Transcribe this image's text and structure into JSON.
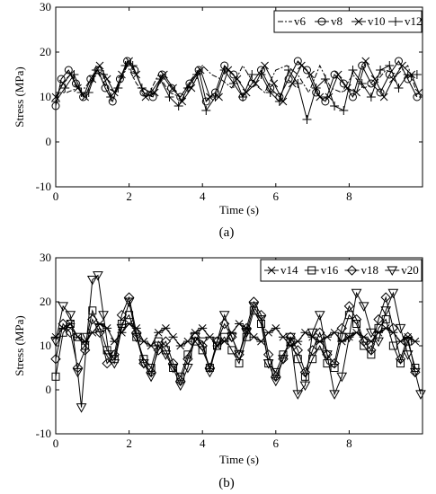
{
  "figure": {
    "panel_labels": [
      "(a)",
      "(b)"
    ]
  },
  "chart_data": [
    {
      "type": "line",
      "panel": "(a)",
      "xlabel": "Time (s)",
      "ylabel": "Stress (MPa)",
      "xlim": [
        0,
        10
      ],
      "ylim": [
        -10,
        30
      ],
      "xticks": [
        0,
        2,
        4,
        6,
        8
      ],
      "yticks": [
        -10,
        0,
        10,
        20,
        30
      ],
      "grid": false,
      "legend_position": "top-right",
      "series": [
        {
          "name": "v6",
          "marker": "none",
          "dash": "dashdot",
          "x": [
            0,
            0.3,
            0.6,
            0.8,
            1.1,
            1.4,
            1.65,
            1.95,
            2.2,
            2.5,
            2.8,
            3.1,
            3.4,
            3.7,
            4,
            4.25,
            4.5,
            4.8,
            5.1,
            5.4,
            5.7,
            6,
            6.3,
            6.6,
            6.9,
            7.2,
            7.5,
            7.8,
            8.1,
            8.4,
            8.7,
            9,
            9.3,
            9.6,
            9.8
          ],
          "y": [
            11,
            11,
            12,
            12,
            16,
            12,
            11,
            17,
            13,
            10,
            15,
            11,
            10,
            14,
            17,
            15,
            14,
            12,
            17,
            13,
            11,
            16,
            17,
            15,
            11,
            17,
            12,
            11,
            15,
            12,
            13,
            16,
            15,
            17,
            12
          ]
        },
        {
          "name": "v8",
          "marker": "circle",
          "x": [
            0,
            0.15,
            0.35,
            0.55,
            0.75,
            0.95,
            1.15,
            1.35,
            1.55,
            1.75,
            1.95,
            2.15,
            2.4,
            2.65,
            2.9,
            3.15,
            3.4,
            3.65,
            3.9,
            4.1,
            4.35,
            4.6,
            4.85,
            5.1,
            5.35,
            5.6,
            5.85,
            6.1,
            6.35,
            6.6,
            6.85,
            7.1,
            7.35,
            7.6,
            7.85,
            8.1,
            8.35,
            8.6,
            8.85,
            9.1,
            9.35,
            9.6,
            9.85
          ],
          "y": [
            8,
            14,
            16,
            13,
            10,
            14,
            16,
            12,
            9,
            14,
            18,
            16,
            11,
            10,
            15,
            12,
            10,
            13,
            16,
            9,
            11,
            17,
            15,
            10,
            13,
            16,
            12,
            10,
            14,
            18,
            16,
            11,
            9,
            15,
            13,
            10,
            17,
            13,
            11,
            15,
            18,
            14,
            10
          ]
        },
        {
          "name": "v10",
          "marker": "x",
          "x": [
            0,
            0.2,
            0.4,
            0.6,
            0.8,
            1.0,
            1.2,
            1.4,
            1.6,
            1.8,
            2.0,
            2.2,
            2.45,
            2.7,
            2.95,
            3.2,
            3.45,
            3.7,
            3.95,
            4.2,
            4.45,
            4.7,
            4.95,
            5.2,
            5.45,
            5.7,
            5.95,
            6.2,
            6.45,
            6.7,
            6.95,
            7.2,
            7.45,
            7.7,
            7.95,
            8.2,
            8.45,
            8.7,
            8.95,
            9.2,
            9.45,
            9.7,
            9.9
          ],
          "y": [
            10,
            13,
            15,
            12,
            10,
            14,
            17,
            14,
            11,
            15,
            18,
            15,
            10,
            11,
            15,
            12,
            9,
            12,
            16,
            10,
            10,
            16,
            14,
            11,
            13,
            17,
            13,
            9,
            13,
            17,
            15,
            10,
            10,
            15,
            12,
            11,
            18,
            14,
            10,
            14,
            17,
            15,
            11
          ]
        },
        {
          "name": "v12",
          "marker": "plus",
          "x": [
            0,
            0.25,
            0.5,
            0.7,
            0.9,
            1.1,
            1.3,
            1.5,
            1.7,
            1.9,
            2.1,
            2.35,
            2.6,
            2.85,
            3.1,
            3.35,
            3.6,
            3.85,
            4.1,
            4.35,
            4.6,
            4.85,
            5.1,
            5.35,
            5.6,
            5.85,
            6.1,
            6.35,
            6.6,
            6.85,
            7.1,
            7.35,
            7.6,
            7.85,
            8.1,
            8.35,
            8.6,
            8.85,
            9.1,
            9.35,
            9.6,
            9.85
          ],
          "y": [
            9,
            12,
            15,
            11,
            11,
            16,
            15,
            10,
            12,
            17,
            17,
            12,
            11,
            14,
            10,
            8,
            12,
            15,
            7,
            10,
            16,
            13,
            10,
            15,
            15,
            11,
            9,
            16,
            13,
            5,
            12,
            14,
            8,
            7,
            16,
            13,
            10,
            16,
            17,
            12,
            15,
            15
          ]
        }
      ]
    },
    {
      "type": "line",
      "panel": "(b)",
      "xlabel": "Time (s)",
      "ylabel": "Stress (MPa)",
      "xlim": [
        0,
        10
      ],
      "ylim": [
        -10,
        30
      ],
      "xticks": [
        0,
        2,
        4,
        6,
        8
      ],
      "yticks": [
        -10,
        0,
        10,
        20,
        30
      ],
      "grid": false,
      "legend_position": "top-right",
      "series": [
        {
          "name": "v14",
          "marker": "asterisk",
          "x": [
            0,
            0.2,
            0.4,
            0.6,
            0.8,
            1.0,
            1.2,
            1.4,
            1.6,
            1.8,
            2.0,
            2.2,
            2.4,
            2.6,
            2.8,
            3.0,
            3.2,
            3.4,
            3.6,
            3.8,
            4.0,
            4.2,
            4.4,
            4.6,
            4.8,
            5.0,
            5.2,
            5.4,
            5.6,
            5.8,
            6.0,
            6.2,
            6.4,
            6.6,
            6.8,
            7.0,
            7.2,
            7.4,
            7.6,
            7.8,
            8.0,
            8.2,
            8.4,
            8.6,
            8.8,
            9.0,
            9.2,
            9.4,
            9.6,
            9.8
          ],
          "y": [
            12,
            14,
            15,
            12,
            11,
            13,
            15,
            14,
            11,
            13,
            15,
            14,
            11,
            10,
            13,
            14,
            12,
            10,
            11,
            13,
            14,
            12,
            10,
            11,
            13,
            15,
            14,
            12,
            11,
            13,
            14,
            12,
            10,
            11,
            13,
            12,
            11,
            12,
            13,
            11,
            12,
            13,
            12,
            11,
            13,
            14,
            13,
            11,
            12,
            11
          ]
        },
        {
          "name": "v16",
          "marker": "square",
          "x": [
            0,
            0.2,
            0.4,
            0.6,
            0.8,
            1.0,
            1.2,
            1.4,
            1.6,
            1.8,
            2.0,
            2.2,
            2.4,
            2.6,
            2.8,
            3.0,
            3.2,
            3.4,
            3.6,
            3.8,
            4.0,
            4.2,
            4.4,
            4.6,
            4.8,
            5.0,
            5.2,
            5.4,
            5.6,
            5.8,
            6.0,
            6.2,
            6.4,
            6.6,
            6.8,
            7.0,
            7.2,
            7.4,
            7.6,
            7.8,
            8.0,
            8.2,
            8.4,
            8.6,
            8.8,
            9.0,
            9.2,
            9.4,
            9.6,
            9.8
          ],
          "y": [
            3,
            13,
            15,
            12,
            10,
            18,
            14,
            9,
            7,
            15,
            17,
            12,
            7,
            5,
            11,
            9,
            5,
            3,
            8,
            11,
            9,
            5,
            10,
            12,
            9,
            6,
            12,
            18,
            15,
            6,
            4,
            8,
            11,
            7,
            3,
            7,
            10,
            6,
            5,
            12,
            17,
            15,
            10,
            8,
            14,
            16,
            10,
            6,
            11,
            5
          ]
        },
        {
          "name": "v18",
          "marker": "diamond",
          "x": [
            0,
            0.2,
            0.4,
            0.6,
            0.8,
            1.0,
            1.2,
            1.4,
            1.6,
            1.8,
            2.0,
            2.2,
            2.4,
            2.6,
            2.8,
            3.0,
            3.2,
            3.4,
            3.6,
            3.8,
            4.0,
            4.2,
            4.4,
            4.6,
            4.8,
            5.0,
            5.2,
            5.4,
            5.6,
            5.8,
            6.0,
            6.2,
            6.4,
            6.6,
            6.8,
            7.0,
            7.2,
            7.4,
            7.6,
            7.8,
            8.0,
            8.2,
            8.4,
            8.6,
            8.8,
            9.0,
            9.2,
            9.4,
            9.6,
            9.8
          ],
          "y": [
            7,
            15,
            13,
            5,
            9,
            16,
            13,
            6,
            8,
            17,
            21,
            13,
            6,
            4,
            9,
            11,
            6,
            2,
            7,
            12,
            10,
            5,
            11,
            15,
            12,
            8,
            14,
            20,
            17,
            8,
            3,
            7,
            12,
            9,
            4,
            9,
            13,
            8,
            6,
            14,
            19,
            16,
            11,
            9,
            16,
            21,
            14,
            7,
            12,
            4
          ]
        },
        {
          "name": "v20",
          "marker": "triangle-down",
          "x": [
            0,
            0.2,
            0.4,
            0.6,
            0.7,
            0.85,
            1.0,
            1.15,
            1.3,
            1.45,
            1.6,
            1.8,
            2.0,
            2.2,
            2.4,
            2.6,
            2.8,
            3.0,
            3.2,
            3.4,
            3.6,
            3.8,
            4.0,
            4.2,
            4.4,
            4.6,
            4.8,
            5.0,
            5.2,
            5.4,
            5.6,
            5.8,
            6.0,
            6.2,
            6.4,
            6.6,
            6.8,
            7.0,
            7.2,
            7.4,
            7.6,
            7.8,
            8.0,
            8.2,
            8.4,
            8.6,
            8.8,
            9.0,
            9.2,
            9.4,
            9.6,
            9.8,
            9.95
          ],
          "y": [
            11,
            19,
            17,
            4,
            -4,
            12,
            25,
            26,
            17,
            8,
            6,
            14,
            20,
            12,
            6,
            3,
            10,
            8,
            5,
            1,
            5,
            12,
            11,
            4,
            11,
            17,
            12,
            8,
            13,
            19,
            16,
            6,
            2,
            7,
            12,
            -1,
            1,
            13,
            17,
            8,
            -1,
            3,
            12,
            22,
            19,
            13,
            11,
            18,
            22,
            14,
            8,
            4,
            -1
          ]
        }
      ]
    }
  ]
}
